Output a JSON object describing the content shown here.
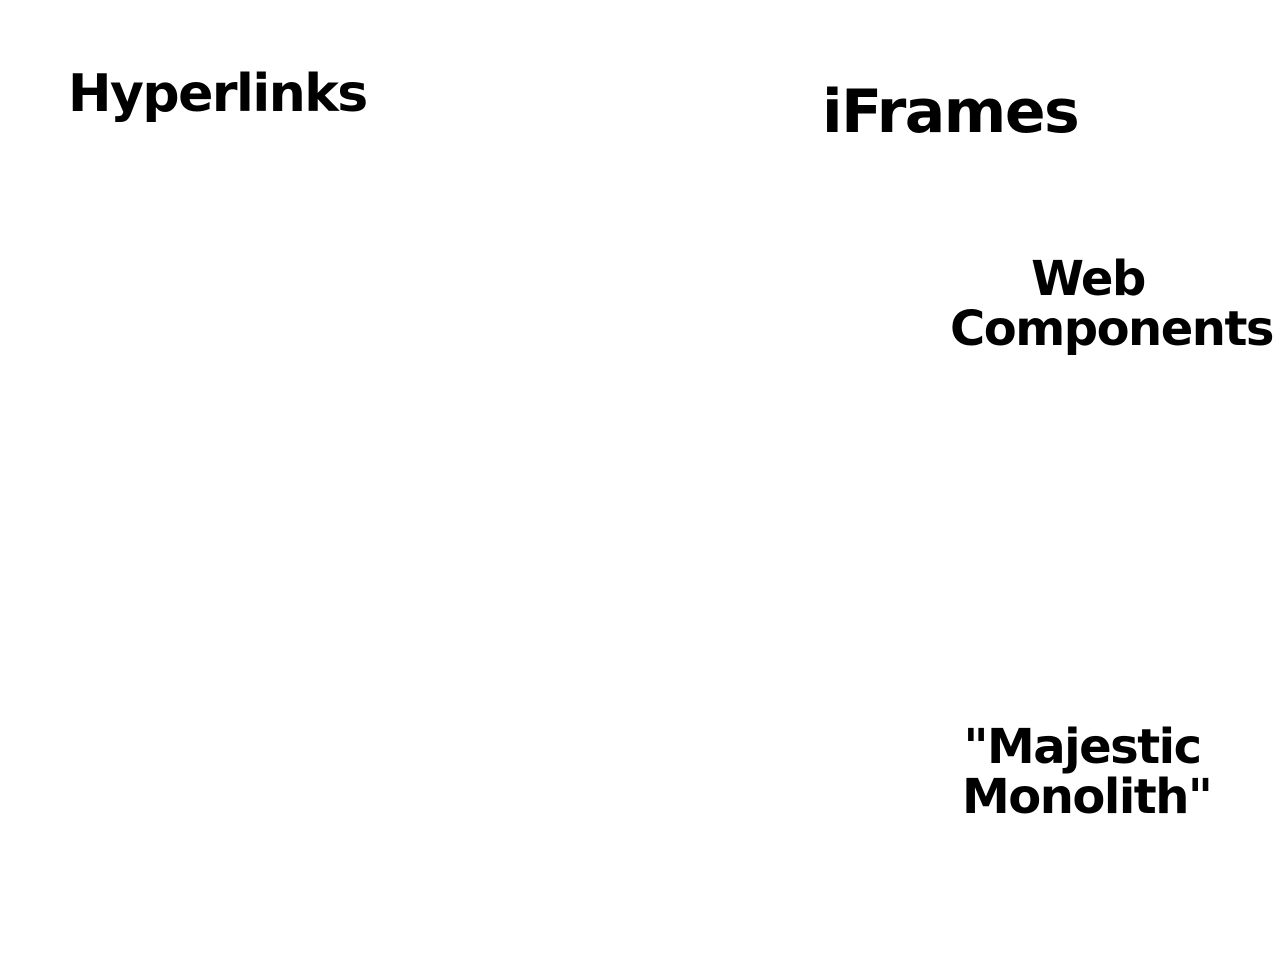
{
  "labels": {
    "hyperlinks": "Hyperlinks",
    "iframes": "iFrames",
    "web_components": "Web\nComponents",
    "majestic_monolith": "\"Majestic\nMonolith\""
  },
  "colors": {
    "background": "#ffffff",
    "text": "#000000"
  }
}
